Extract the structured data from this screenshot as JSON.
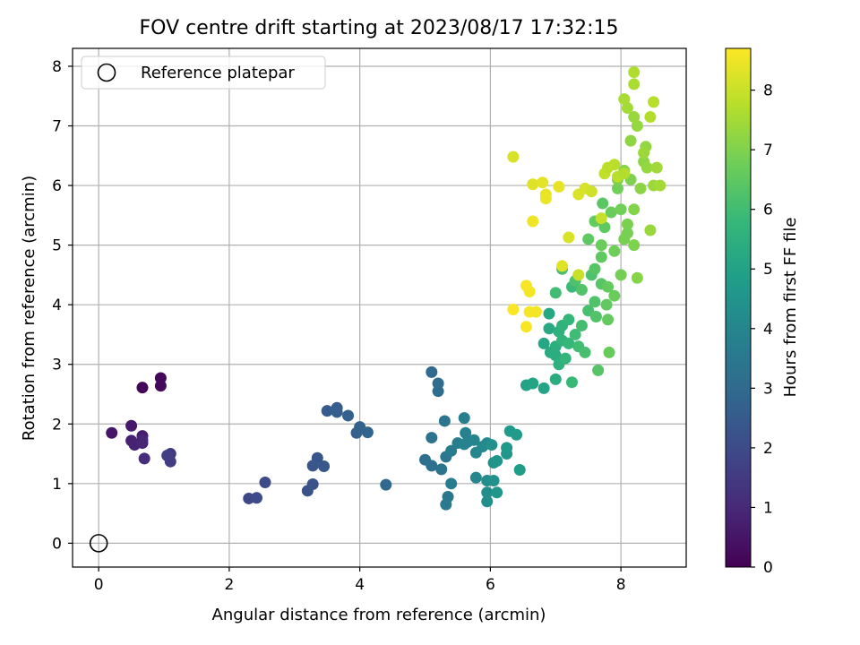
{
  "chart_data": {
    "type": "scatter",
    "title": "FOV centre drift starting at 2023/08/17 17:32:15",
    "xlabel": "Angular distance from reference (arcmin)",
    "ylabel": "Rotation from reference (arcmin)",
    "xlim": [
      -0.4,
      9.0
    ],
    "ylim": [
      -0.4,
      8.3
    ],
    "xticks": [
      0,
      2,
      4,
      6,
      8
    ],
    "yticks": [
      0,
      1,
      2,
      3,
      4,
      5,
      6,
      7,
      8
    ],
    "grid": true,
    "legend": {
      "position": "upper-left",
      "entries": [
        "Reference platepar"
      ]
    },
    "reference_point": {
      "x": 0,
      "y": 0,
      "name": "Reference platepar"
    },
    "colorbar": {
      "label": "Hours from first FF file",
      "range": [
        0,
        8.7
      ],
      "ticks": [
        0,
        1,
        2,
        3,
        4,
        5,
        6,
        7,
        8
      ],
      "colormap": "viridis",
      "stops": [
        "#440154",
        "#482878",
        "#3e4989",
        "#31688e",
        "#26828e",
        "#1f9e89",
        "#35b779",
        "#6ece58",
        "#b5de2b",
        "#fde725"
      ]
    },
    "points": [
      [
        0.67,
        2.61,
        0.1
      ],
      [
        0.95,
        2.77,
        0.15
      ],
      [
        0.95,
        2.64,
        0.2
      ],
      [
        0.2,
        1.85,
        0.5
      ],
      [
        0.5,
        1.97,
        0.6
      ],
      [
        0.67,
        1.8,
        0.7
      ],
      [
        0.5,
        1.72,
        0.8
      ],
      [
        0.55,
        1.65,
        0.85
      ],
      [
        0.67,
        1.68,
        0.9
      ],
      [
        0.67,
        1.73,
        0.95
      ],
      [
        0.7,
        1.42,
        1.1
      ],
      [
        1.1,
        1.5,
        1.5
      ],
      [
        1.1,
        1.37,
        1.55
      ],
      [
        1.05,
        1.47,
        1.6
      ],
      [
        2.3,
        0.75,
        1.9
      ],
      [
        2.42,
        0.76,
        1.95
      ],
      [
        2.55,
        1.02,
        2.0
      ],
      [
        3.2,
        0.88,
        2.2
      ],
      [
        3.28,
        0.99,
        2.25
      ],
      [
        3.28,
        1.3,
        2.3
      ],
      [
        3.35,
        1.43,
        2.35
      ],
      [
        3.45,
        1.29,
        2.4
      ],
      [
        3.5,
        2.22,
        2.5
      ],
      [
        3.65,
        2.27,
        2.55
      ],
      [
        3.65,
        2.2,
        2.6
      ],
      [
        3.82,
        2.14,
        2.65
      ],
      [
        3.95,
        1.85,
        2.7
      ],
      [
        4.0,
        1.95,
        2.75
      ],
      [
        4.12,
        1.86,
        2.8
      ],
      [
        4.4,
        0.98,
        2.9
      ],
      [
        5.1,
        2.87,
        3.0
      ],
      [
        5.2,
        2.68,
        3.05
      ],
      [
        5.2,
        2.55,
        3.1
      ],
      [
        5.0,
        1.4,
        3.2
      ],
      [
        5.1,
        1.3,
        3.25
      ],
      [
        5.1,
        1.77,
        3.3
      ],
      [
        5.25,
        1.24,
        3.35
      ],
      [
        5.3,
        2.05,
        3.4
      ],
      [
        5.32,
        1.45,
        3.45
      ],
      [
        5.35,
        0.78,
        3.5
      ],
      [
        5.32,
        0.65,
        3.55
      ],
      [
        5.4,
        1.0,
        3.6
      ],
      [
        5.4,
        1.55,
        3.65
      ],
      [
        5.5,
        1.68,
        3.7
      ],
      [
        5.6,
        2.1,
        3.75
      ],
      [
        5.62,
        1.85,
        3.8
      ],
      [
        5.65,
        1.7,
        3.85
      ],
      [
        5.6,
        1.66,
        3.9
      ],
      [
        5.75,
        1.73,
        3.95
      ],
      [
        5.78,
        1.1,
        4.0
      ],
      [
        5.78,
        1.52,
        4.05
      ],
      [
        5.88,
        1.62,
        4.1
      ],
      [
        5.95,
        1.68,
        4.15
      ],
      [
        5.95,
        1.05,
        4.2
      ],
      [
        5.95,
        0.85,
        4.25
      ],
      [
        5.95,
        0.7,
        4.3
      ],
      [
        6.02,
        1.65,
        4.35
      ],
      [
        6.05,
        1.05,
        4.4
      ],
      [
        6.05,
        1.35,
        4.45
      ],
      [
        6.1,
        1.38,
        4.5
      ],
      [
        6.1,
        0.85,
        4.55
      ],
      [
        6.25,
        1.5,
        4.6
      ],
      [
        6.25,
        1.6,
        4.65
      ],
      [
        6.3,
        1.88,
        4.7
      ],
      [
        6.4,
        1.82,
        4.75
      ],
      [
        6.45,
        1.23,
        4.8
      ],
      [
        6.55,
        2.65,
        5.0
      ],
      [
        6.65,
        2.68,
        5.05
      ],
      [
        6.82,
        2.6,
        5.1
      ],
      [
        6.82,
        3.35,
        5.15
      ],
      [
        6.9,
        3.85,
        5.2
      ],
      [
        6.9,
        3.6,
        5.25
      ],
      [
        6.92,
        3.2,
        5.3
      ],
      [
        7.0,
        2.75,
        5.35
      ],
      [
        7.0,
        3.15,
        5.4
      ],
      [
        7.0,
        3.3,
        5.45
      ],
      [
        7.05,
        3.55,
        5.5
      ],
      [
        7.05,
        3.0,
        5.55
      ],
      [
        7.1,
        3.65,
        5.6
      ],
      [
        7.1,
        3.4,
        5.65
      ],
      [
        7.15,
        3.1,
        5.7
      ],
      [
        7.2,
        3.75,
        5.75
      ],
      [
        7.2,
        3.35,
        5.8
      ],
      [
        7.25,
        2.7,
        5.85
      ],
      [
        7.25,
        4.3,
        5.9
      ],
      [
        7.3,
        3.5,
        5.95
      ],
      [
        7.35,
        3.3,
        6.0
      ],
      [
        7.4,
        3.65,
        6.05
      ],
      [
        7.45,
        3.2,
        6.1
      ],
      [
        7.5,
        3.9,
        6.15
      ],
      [
        7.55,
        4.5,
        6.2
      ],
      [
        7.6,
        4.05,
        6.25
      ],
      [
        7.62,
        3.8,
        6.3
      ],
      [
        7.65,
        2.9,
        6.35
      ],
      [
        7.7,
        4.35,
        6.4
      ],
      [
        7.72,
        5.7,
        6.45
      ],
      [
        7.75,
        5.3,
        6.5
      ],
      [
        7.78,
        4.0,
        6.55
      ],
      [
        7.8,
        3.75,
        6.6
      ],
      [
        7.82,
        3.2,
        6.65
      ],
      [
        7.85,
        5.55,
        6.7
      ],
      [
        7.9,
        4.9,
        6.75
      ],
      [
        7.95,
        5.95,
        6.8
      ],
      [
        8.0,
        4.5,
        6.85
      ],
      [
        8.05,
        5.1,
        6.9
      ],
      [
        8.1,
        5.35,
        6.95
      ],
      [
        8.15,
        6.1,
        7.0
      ],
      [
        8.2,
        5.6,
        7.05
      ],
      [
        8.25,
        4.45,
        7.1
      ],
      [
        8.3,
        5.95,
        7.15
      ],
      [
        8.35,
        6.4,
        7.2
      ],
      [
        8.38,
        6.65,
        7.25
      ],
      [
        8.4,
        6.3,
        7.3
      ],
      [
        8.45,
        5.25,
        7.35
      ],
      [
        8.5,
        6.0,
        7.4
      ],
      [
        8.55,
        6.3,
        7.45
      ],
      [
        8.6,
        6.0,
        7.5
      ],
      [
        7.0,
        4.2,
        6.0
      ],
      [
        7.1,
        4.6,
        6.1
      ],
      [
        7.3,
        4.4,
        6.2
      ],
      [
        7.4,
        4.25,
        6.3
      ],
      [
        7.6,
        4.6,
        6.4
      ],
      [
        7.7,
        4.8,
        6.5
      ],
      [
        7.8,
        4.3,
        6.6
      ],
      [
        7.9,
        4.15,
        6.7
      ],
      [
        8.0,
        5.6,
        6.8
      ],
      [
        8.1,
        5.2,
        6.9
      ],
      [
        8.2,
        5.0,
        7.0
      ],
      [
        7.6,
        5.4,
        6.6
      ],
      [
        7.5,
        5.1,
        6.5
      ],
      [
        7.7,
        5.0,
        6.7
      ],
      [
        7.95,
        6.1,
        7.0
      ],
      [
        8.05,
        6.25,
        7.1
      ],
      [
        8.15,
        6.75,
        7.2
      ],
      [
        8.25,
        7.0,
        7.3
      ],
      [
        8.2,
        7.15,
        7.35
      ],
      [
        8.35,
        6.55,
        7.4
      ],
      [
        8.1,
        7.3,
        7.5
      ],
      [
        8.05,
        7.45,
        7.55
      ],
      [
        8.2,
        7.7,
        7.6
      ],
      [
        8.2,
        7.9,
        7.65
      ],
      [
        8.45,
        7.15,
        7.7
      ],
      [
        8.5,
        7.4,
        7.75
      ],
      [
        7.9,
        6.35,
        7.8
      ],
      [
        6.35,
        6.48,
        8.2
      ],
      [
        6.65,
        6.02,
        8.3
      ],
      [
        6.8,
        6.05,
        8.35
      ],
      [
        6.85,
        5.85,
        8.4
      ],
      [
        6.85,
        5.78,
        8.45
      ],
      [
        6.65,
        5.4,
        8.5
      ],
      [
        6.6,
        4.22,
        8.55
      ],
      [
        6.55,
        4.32,
        8.6
      ],
      [
        6.35,
        3.92,
        8.65
      ],
      [
        6.6,
        3.88,
        8.6
      ],
      [
        6.7,
        3.88,
        8.55
      ],
      [
        6.55,
        3.63,
        8.6
      ],
      [
        7.05,
        5.98,
        8.4
      ],
      [
        7.1,
        4.65,
        8.3
      ],
      [
        7.2,
        5.13,
        8.2
      ],
      [
        7.35,
        5.85,
        8.25
      ],
      [
        7.45,
        5.95,
        8.2
      ],
      [
        7.55,
        5.9,
        8.1
      ],
      [
        7.35,
        4.5,
        8.0
      ],
      [
        7.7,
        5.45,
        7.95
      ],
      [
        7.75,
        6.2,
        7.9
      ],
      [
        7.8,
        6.3,
        7.85
      ],
      [
        7.95,
        6.15,
        7.8
      ],
      [
        8.05,
        6.2,
        7.7
      ]
    ]
  }
}
